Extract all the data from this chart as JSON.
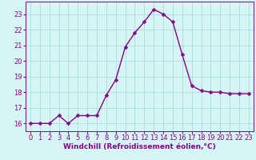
{
  "x": [
    0,
    1,
    2,
    3,
    4,
    5,
    6,
    7,
    8,
    9,
    10,
    11,
    12,
    13,
    14,
    15,
    16,
    17,
    18,
    19,
    20,
    21,
    22,
    23
  ],
  "y": [
    16.0,
    16.0,
    16.0,
    16.5,
    16.0,
    16.5,
    16.5,
    16.5,
    17.8,
    18.8,
    20.9,
    21.8,
    22.5,
    23.3,
    23.0,
    22.5,
    20.4,
    18.4,
    18.1,
    18.0,
    18.0,
    17.9,
    17.9,
    17.9
  ],
  "line_color": "#880088",
  "marker": "D",
  "marker_size": 2.5,
  "bg_color": "#d6f5f5",
  "grid_color": "#aadddd",
  "xlabel": "Windchill (Refroidissement éolien,°C)",
  "xlim": [
    -0.5,
    23.5
  ],
  "ylim": [
    15.5,
    23.8
  ],
  "yticks": [
    16,
    17,
    18,
    19,
    20,
    21,
    22,
    23
  ],
  "xticks": [
    0,
    1,
    2,
    3,
    4,
    5,
    6,
    7,
    8,
    9,
    10,
    11,
    12,
    13,
    14,
    15,
    16,
    17,
    18,
    19,
    20,
    21,
    22,
    23
  ],
  "xlabel_fontsize": 6.5,
  "tick_fontsize": 6.0,
  "line_width": 1.0,
  "tick_color": "#880088"
}
